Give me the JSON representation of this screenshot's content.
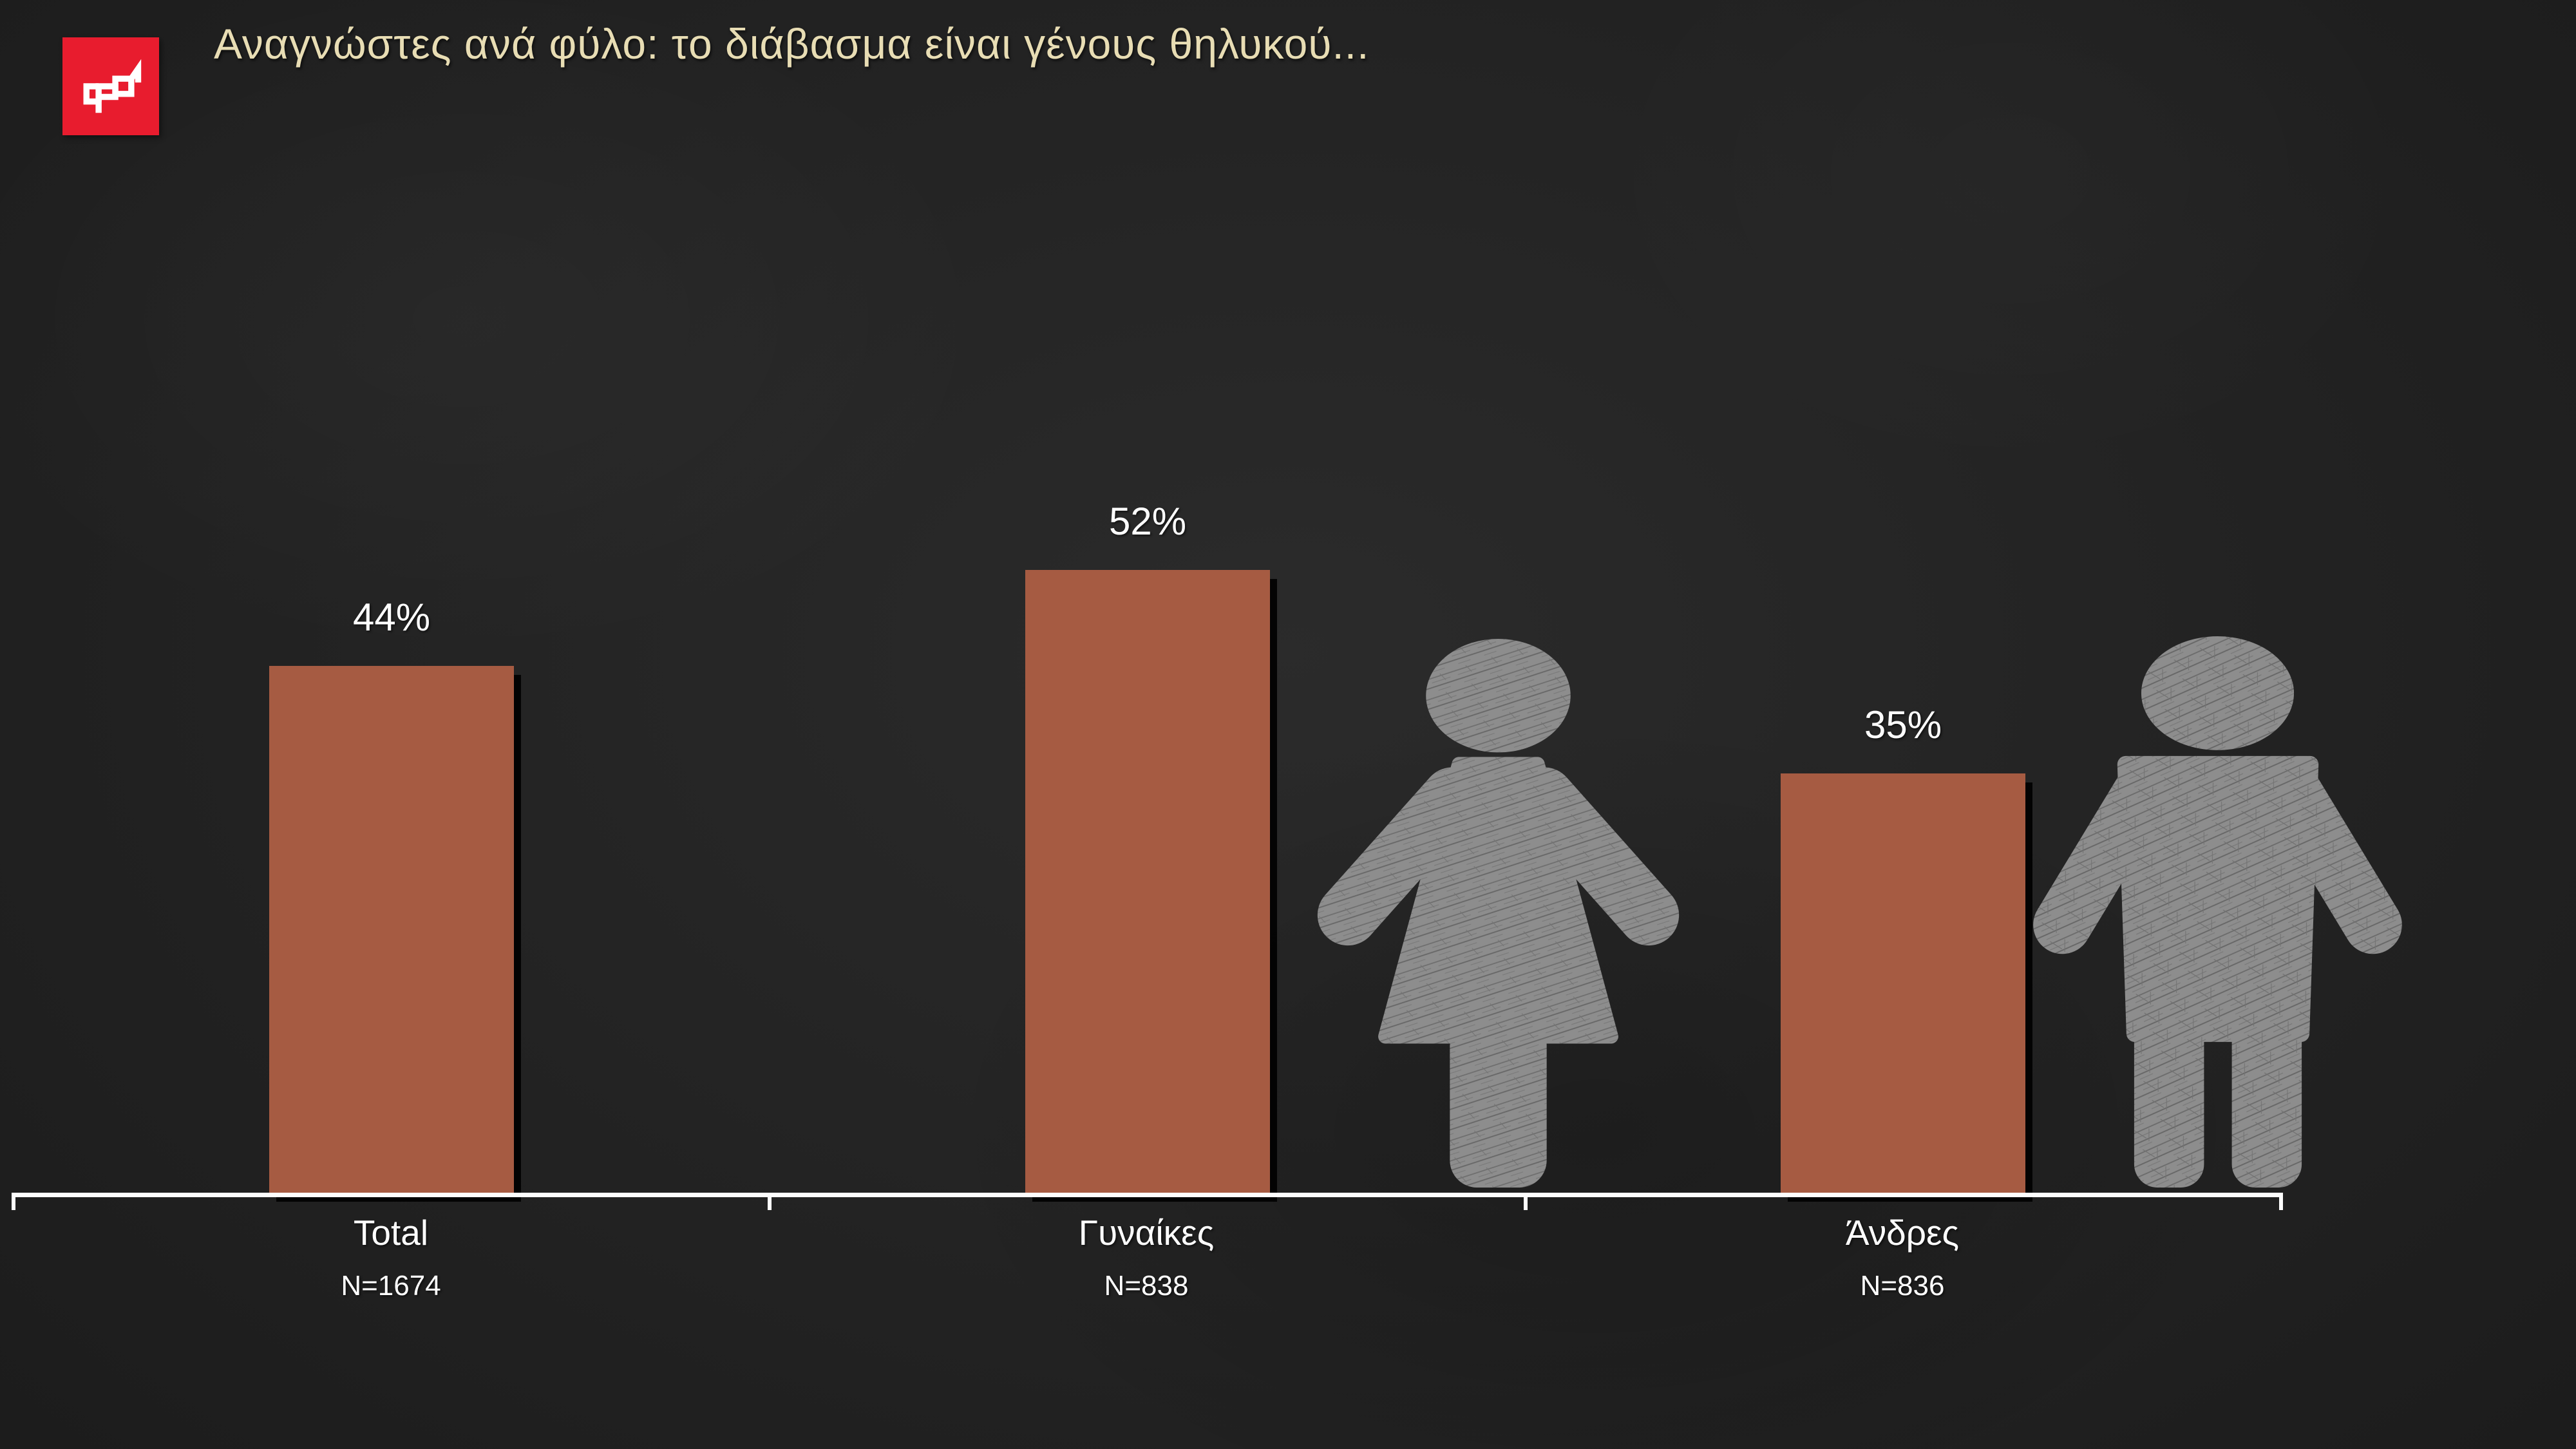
{
  "header": {
    "title": "Αναγνώστες ανά φύλο: το διάβασμα είναι γένους θηλυκού...",
    "logo": {
      "name": "brand-logo",
      "color": "#e81c2e",
      "mark_color": "#ffffff"
    }
  },
  "chart_data": {
    "type": "bar",
    "title": "Αναγνώστες ανά φύλο: το διάβασμα είναι γένους θηλυκού...",
    "categories": [
      "Total",
      "Γυναίκες",
      "Άνδρες"
    ],
    "values": [
      44,
      52,
      35
    ],
    "value_labels": [
      "44%",
      "52%",
      "35%"
    ],
    "sample_labels": [
      "N=1674",
      "N=838",
      "N=836"
    ],
    "xlabel": "",
    "ylabel": "",
    "ylim": [
      0,
      55
    ],
    "grid": false,
    "legend": false,
    "bar_color": "#a65b42",
    "bar_shadow_color": "#020202",
    "axis_color": "#fdfdfd",
    "text_color": "#ffffff",
    "title_color": "#e8ddb4",
    "background_color": "#242424",
    "figure_color": "#8d8d8d",
    "icons": [
      "female-figure-icon",
      "male-figure-icon"
    ]
  }
}
